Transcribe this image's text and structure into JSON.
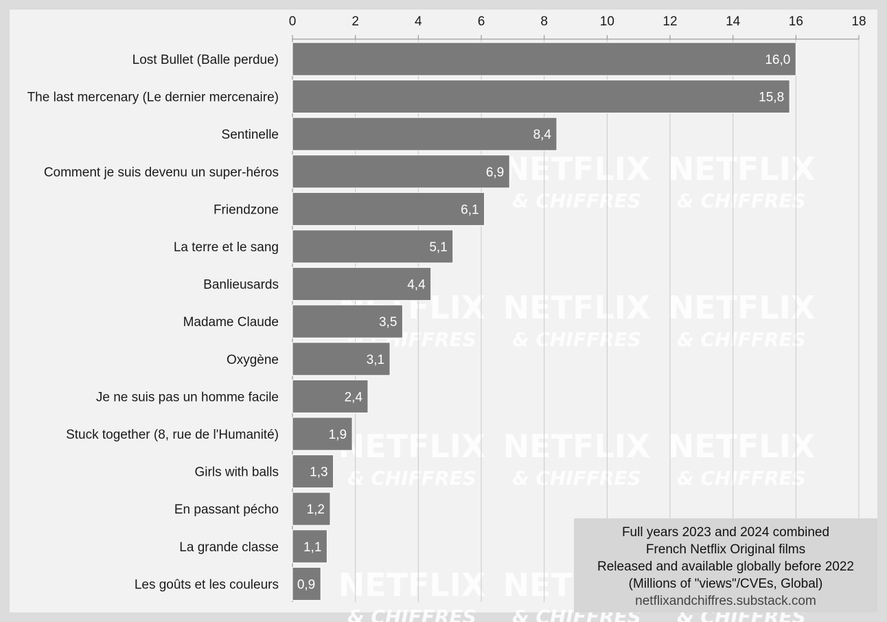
{
  "chart_data": {
    "type": "bar",
    "orientation": "horizontal",
    "categories": [
      "Lost Bullet (Balle perdue)",
      "The last mercenary (Le dernier mercenaire)",
      "Sentinelle",
      "Comment je suis devenu un super-héros",
      "Friendzone",
      "La terre et le sang",
      "Banlieusards",
      "Madame Claude",
      "Oxygène",
      "Je ne suis pas un homme facile",
      "Stuck together (8, rue de l'Humanité)",
      "Girls with balls",
      "En passant pécho",
      "La grande classe",
      "Les goûts et les couleurs"
    ],
    "values": [
      16.0,
      15.8,
      8.4,
      6.9,
      6.1,
      5.1,
      4.4,
      3.5,
      3.1,
      2.4,
      1.9,
      1.3,
      1.2,
      1.1,
      0.9
    ],
    "value_labels": [
      "16,0",
      "15,8",
      "8,4",
      "6,9",
      "6,1",
      "5,1",
      "4,4",
      "3,5",
      "3,1",
      "2,4",
      "1,9",
      "1,3",
      "1,2",
      "1,1",
      "0,9"
    ],
    "xlim": [
      0,
      18
    ],
    "xticks": [
      "0",
      "2",
      "4",
      "6",
      "8",
      "10",
      "12",
      "14",
      "16",
      "18"
    ],
    "axis_position": "top",
    "grid": true,
    "colors": {
      "bar": "#7a7a7a",
      "background": "#f2f2f2",
      "frame": "#dcdcdc",
      "note_box": "#d6d6d6"
    }
  },
  "note": {
    "lines": [
      "Full years 2023 and 2024 combined",
      "French Netflix Original films",
      "Released and available globally before 2022",
      "(Millions of \"views\"/CVEs, Global)"
    ],
    "source": "netflixandchiffres.substack.com"
  },
  "watermark": {
    "line1": "NETFLIX",
    "line2": "& CHIFFRES"
  }
}
